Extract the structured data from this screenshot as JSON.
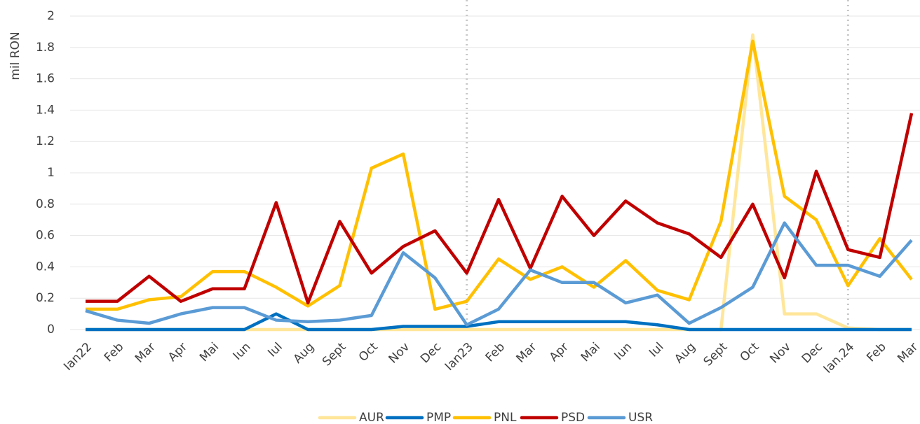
{
  "chart_data": {
    "type": "line",
    "y_label": "mil RON",
    "categories": [
      "Ian22",
      "Feb",
      "Mar",
      "Apr",
      "Mai",
      "Iun",
      "Iul",
      "Aug",
      "Sept",
      "Oct",
      "Nov",
      "Dec",
      "Ian23",
      "Feb",
      "Mar",
      "Apr",
      "Mai",
      "Iun",
      "Iul",
      "Aug",
      "Sept",
      "Oct",
      "Nov",
      "Dec",
      "Ian.24",
      "Feb",
      "Mar"
    ],
    "ylim": [
      0,
      2
    ],
    "yticks": [
      0,
      0.2,
      0.4,
      0.6,
      0.8,
      1,
      1.2,
      1.4,
      1.6,
      1.8,
      2
    ],
    "grid": true,
    "legend": "bottom",
    "series": [
      {
        "name": "AUR",
        "color": "#ffe699",
        "values": [
          0,
          0,
          0,
          0,
          0,
          0,
          0,
          0,
          0,
          0,
          0,
          0,
          0,
          0,
          0,
          0,
          0,
          0,
          0,
          0,
          0,
          1.88,
          0.1,
          0.1,
          0.01,
          0,
          0
        ]
      },
      {
        "name": "PMP",
        "color": "#0070c0",
        "values": [
          0,
          0,
          0,
          0,
          0,
          0,
          0.1,
          0,
          0,
          0,
          0.02,
          0.02,
          0.02,
          0.05,
          0.05,
          0.05,
          0.05,
          0.05,
          0.03,
          0,
          0,
          0,
          0,
          0,
          0,
          0,
          0
        ]
      },
      {
        "name": "PNL",
        "color": "#ffc000",
        "values": [
          0.13,
          0.13,
          0.19,
          0.21,
          0.37,
          0.37,
          0.27,
          0.15,
          0.28,
          1.03,
          1.12,
          0.13,
          0.18,
          0.45,
          0.32,
          0.4,
          0.27,
          0.44,
          0.25,
          0.19,
          0.69,
          1.84,
          0.85,
          0.7,
          0.28,
          0.58,
          0.32
        ]
      },
      {
        "name": "PSD",
        "color": "#c00000",
        "values": [
          0.18,
          0.18,
          0.34,
          0.18,
          0.26,
          0.26,
          0.81,
          0.17,
          0.69,
          0.36,
          0.53,
          0.63,
          0.36,
          0.83,
          0.39,
          0.85,
          0.6,
          0.82,
          0.68,
          0.61,
          0.46,
          0.8,
          0.33,
          1.01,
          0.51,
          0.46,
          1.38
        ]
      },
      {
        "name": "USR",
        "color": "#5b9bd5",
        "values": [
          0.12,
          0.06,
          0.04,
          0.1,
          0.14,
          0.14,
          0.06,
          0.05,
          0.06,
          0.09,
          0.49,
          0.33,
          0.03,
          0.13,
          0.38,
          0.3,
          0.3,
          0.17,
          0.22,
          0.04,
          0.14,
          0.27,
          0.68,
          0.41,
          0.41,
          0.34,
          0.57
        ]
      }
    ]
  }
}
